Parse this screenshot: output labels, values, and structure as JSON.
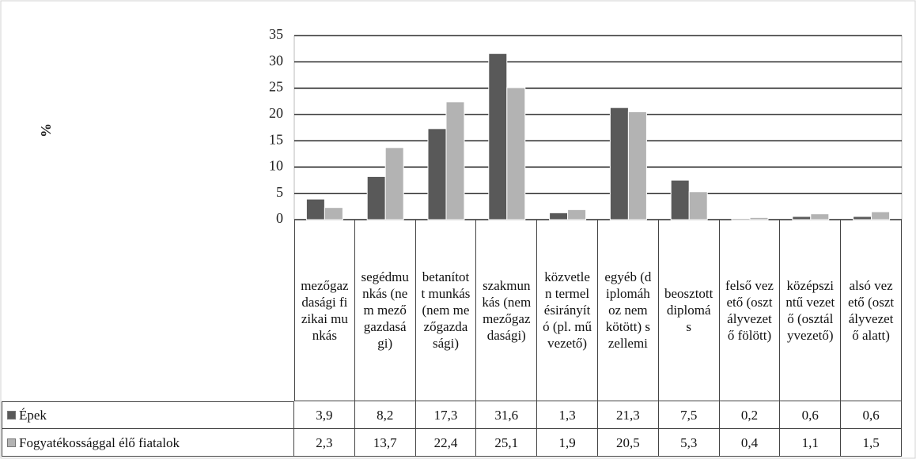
{
  "chart_data": {
    "type": "bar",
    "y_label": "%",
    "categories": [
      "mezőgazdasági fizikai munkás",
      "segédmunkás (nem mezőgazdasági)",
      "betanított munkás (nem mezőgazdasági)",
      "szakmunkás (nem mezőgazdasági)",
      "közvetlen termelésirányító (pl. művezető)",
      "egyéb (diplomához nem kötött) szellemi",
      "beosztott diplomás",
      "felső vezető (osztályvezető fölött)",
      "középszintű vezető (osztályvezető)",
      "alsó vezető (osztályvezető alatt)"
    ],
    "series": [
      {
        "name": "Épek",
        "color": "#595959",
        "values": [
          3.9,
          8.2,
          17.3,
          31.6,
          1.3,
          21.3,
          7.5,
          0.2,
          0.6,
          0.6
        ],
        "value_labels": [
          "3,9",
          "8,2",
          "17,3",
          "31,6",
          "1,3",
          "21,3",
          "7,5",
          "0,2",
          "0,6",
          "0,6"
        ]
      },
      {
        "name": "Fogyatékossággal élő fiatalok",
        "color": "#b3b3b3",
        "values": [
          2.3,
          13.7,
          22.4,
          25.1,
          1.9,
          20.5,
          5.3,
          0.4,
          1.1,
          1.5
        ],
        "value_labels": [
          "2,3",
          "13,7",
          "22,4",
          "25,1",
          "1,9",
          "20,5",
          "5,3",
          "0,4",
          "1,1",
          "1,5"
        ]
      }
    ],
    "ylim": [
      0,
      35
    ],
    "yticks": [
      0,
      5,
      10,
      15,
      20,
      25,
      30,
      35
    ],
    "grid": true
  }
}
